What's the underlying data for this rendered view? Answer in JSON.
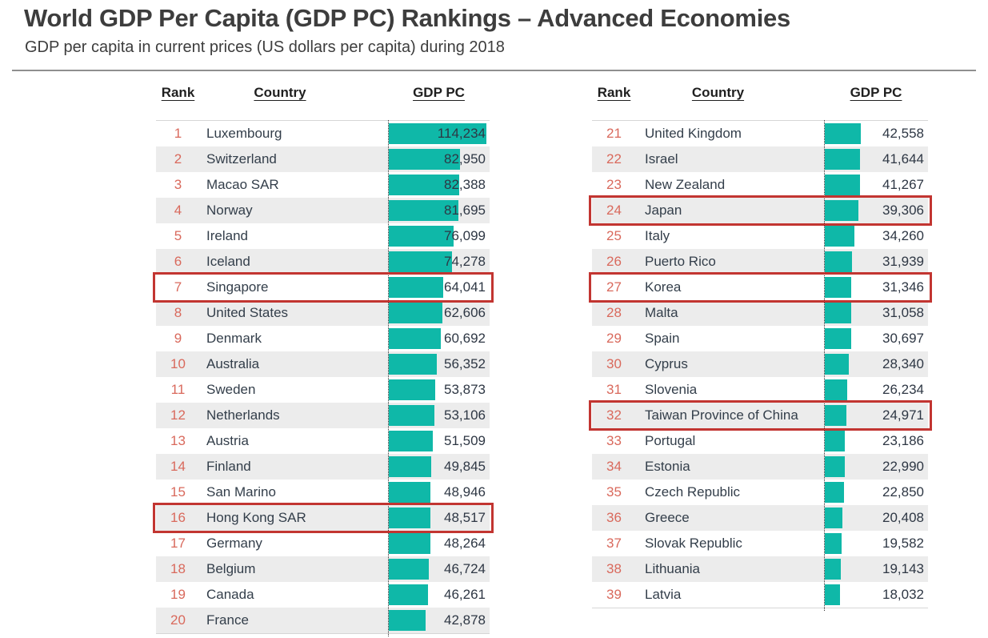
{
  "title": "World GDP Per Capita (GDP PC) Rankings – Advanced Economies",
  "subtitle": "GDP per capita in current prices (US dollars per capita) during 2018",
  "columns": {
    "rank": "Rank",
    "country": "Country",
    "gdp": "GDP PC"
  },
  "colors": {
    "bar_teal": "#0FB8A8",
    "rank_text": "#D9695C",
    "highlight_border": "#C23531",
    "row_alt_bg": "#ECECEC",
    "body_text": "#333E4A",
    "header_text": "#1F1F1F"
  },
  "chart_data": {
    "type": "bar",
    "title": "World GDP Per Capita (GDP PC) Rankings – Advanced Economies",
    "subtitle": "GDP per capita in current prices (US dollars per capita) during 2018",
    "unit": "US dollars per capita",
    "year": "2018",
    "xlim": [
      0,
      114234
    ],
    "max_value": 114234,
    "orientation": "horizontal",
    "highlighted_ranks": [
      7,
      16,
      24,
      27,
      32
    ],
    "highlighted_countries": [
      "Singapore",
      "Hong Kong SAR",
      "Japan",
      "Korea",
      "Taiwan Province of China"
    ],
    "tables": [
      {
        "rows": [
          {
            "rank": 1,
            "country": "Luxembourg",
            "value": 114234,
            "label": "114,234"
          },
          {
            "rank": 2,
            "country": "Switzerland",
            "value": 82950,
            "label": "82,950"
          },
          {
            "rank": 3,
            "country": "Macao SAR",
            "value": 82388,
            "label": "82,388"
          },
          {
            "rank": 4,
            "country": "Norway",
            "value": 81695,
            "label": "81,695"
          },
          {
            "rank": 5,
            "country": "Ireland",
            "value": 76099,
            "label": "76,099"
          },
          {
            "rank": 6,
            "country": "Iceland",
            "value": 74278,
            "label": "74,278"
          },
          {
            "rank": 7,
            "country": "Singapore",
            "value": 64041,
            "label": "64,041"
          },
          {
            "rank": 8,
            "country": "United States",
            "value": 62606,
            "label": "62,606"
          },
          {
            "rank": 9,
            "country": "Denmark",
            "value": 60692,
            "label": "60,692"
          },
          {
            "rank": 10,
            "country": "Australia",
            "value": 56352,
            "label": "56,352"
          },
          {
            "rank": 11,
            "country": "Sweden",
            "value": 53873,
            "label": "53,873"
          },
          {
            "rank": 12,
            "country": "Netherlands",
            "value": 53106,
            "label": "53,106"
          },
          {
            "rank": 13,
            "country": "Austria",
            "value": 51509,
            "label": "51,509"
          },
          {
            "rank": 14,
            "country": "Finland",
            "value": 49845,
            "label": "49,845"
          },
          {
            "rank": 15,
            "country": "San Marino",
            "value": 48946,
            "label": "48,946"
          },
          {
            "rank": 16,
            "country": "Hong Kong SAR",
            "value": 48517,
            "label": "48,517"
          },
          {
            "rank": 17,
            "country": "Germany",
            "value": 48264,
            "label": "48,264"
          },
          {
            "rank": 18,
            "country": "Belgium",
            "value": 46724,
            "label": "46,724"
          },
          {
            "rank": 19,
            "country": "Canada",
            "value": 46261,
            "label": "46,261"
          },
          {
            "rank": 20,
            "country": "France",
            "value": 42878,
            "label": "42,878"
          }
        ]
      },
      {
        "rows": [
          {
            "rank": 21,
            "country": "United Kingdom",
            "value": 42558,
            "label": "42,558"
          },
          {
            "rank": 22,
            "country": "Israel",
            "value": 41644,
            "label": "41,644"
          },
          {
            "rank": 23,
            "country": "New Zealand",
            "value": 41267,
            "label": "41,267"
          },
          {
            "rank": 24,
            "country": "Japan",
            "value": 39306,
            "label": "39,306"
          },
          {
            "rank": 25,
            "country": "Italy",
            "value": 34260,
            "label": "34,260"
          },
          {
            "rank": 26,
            "country": "Puerto Rico",
            "value": 31939,
            "label": "31,939"
          },
          {
            "rank": 27,
            "country": "Korea",
            "value": 31346,
            "label": "31,346"
          },
          {
            "rank": 28,
            "country": "Malta",
            "value": 31058,
            "label": "31,058"
          },
          {
            "rank": 29,
            "country": "Spain",
            "value": 30697,
            "label": "30,697"
          },
          {
            "rank": 30,
            "country": "Cyprus",
            "value": 28340,
            "label": "28,340"
          },
          {
            "rank": 31,
            "country": "Slovenia",
            "value": 26234,
            "label": "26,234"
          },
          {
            "rank": 32,
            "country": "Taiwan Province of China",
            "value": 24971,
            "label": "24,971"
          },
          {
            "rank": 33,
            "country": "Portugal",
            "value": 23186,
            "label": "23,186"
          },
          {
            "rank": 34,
            "country": "Estonia",
            "value": 22990,
            "label": "22,990"
          },
          {
            "rank": 35,
            "country": "Czech Republic",
            "value": 22850,
            "label": "22,850"
          },
          {
            "rank": 36,
            "country": "Greece",
            "value": 20408,
            "label": "20,408"
          },
          {
            "rank": 37,
            "country": "Slovak Republic",
            "value": 19582,
            "label": "19,582"
          },
          {
            "rank": 38,
            "country": "Lithuania",
            "value": 19143,
            "label": "19,143"
          },
          {
            "rank": 39,
            "country": "Latvia",
            "value": 18032,
            "label": "18,032"
          }
        ]
      }
    ]
  }
}
